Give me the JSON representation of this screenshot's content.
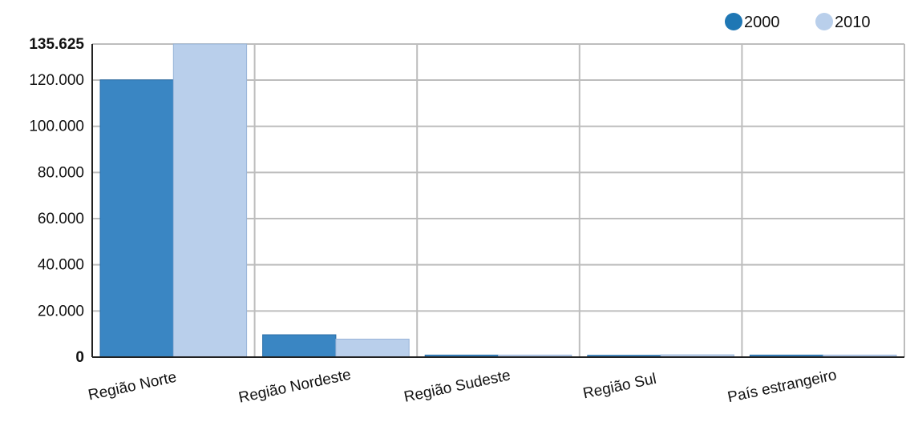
{
  "chart_data": {
    "type": "bar",
    "categories": [
      "Região Norte",
      "Região Nordeste",
      "Região Sudeste",
      "Região Sul",
      "País estrangeiro"
    ],
    "series": [
      {
        "name": "2000",
        "values": [
          120100,
          9700,
          900,
          800,
          900
        ],
        "color": "#3a86c3"
      },
      {
        "name": "2010",
        "values": [
          135625,
          7800,
          900,
          1000,
          900
        ],
        "color": "#b9cfeb"
      }
    ],
    "ylim": [
      0,
      135625
    ],
    "yticks": [
      {
        "value": 135625,
        "label": "135.625",
        "bold": true
      },
      {
        "value": 120000,
        "label": "120.000"
      },
      {
        "value": 100000,
        "label": "100.000"
      },
      {
        "value": 80000,
        "label": "80.000"
      },
      {
        "value": 60000,
        "label": "60.000"
      },
      {
        "value": 40000,
        "label": "40.000"
      },
      {
        "value": 20000,
        "label": "20.000"
      },
      {
        "value": 0,
        "label": "0",
        "bold": true
      }
    ],
    "grid": true,
    "legend_position": "top-right",
    "title": "",
    "xlabel": "",
    "ylabel": ""
  }
}
